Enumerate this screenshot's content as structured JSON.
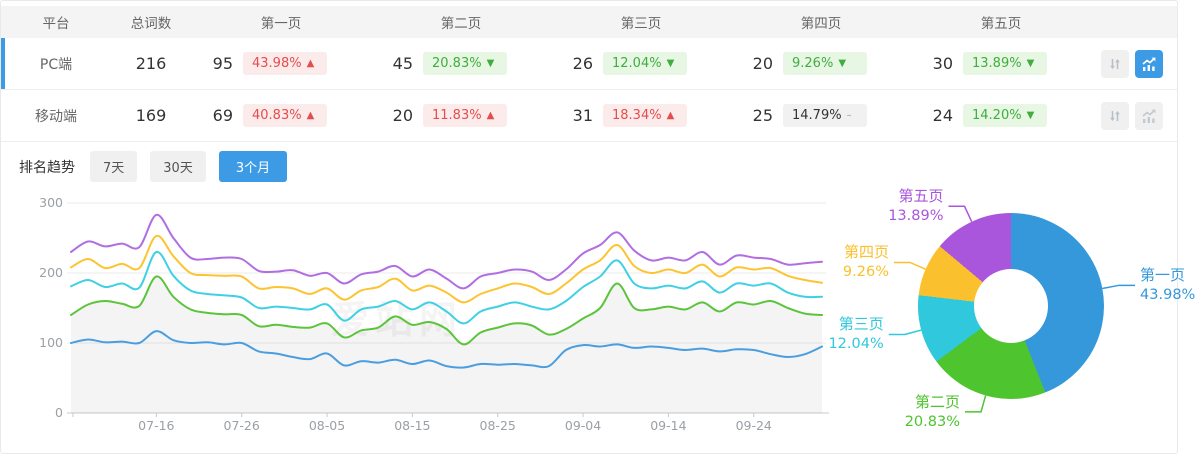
{
  "colors": {
    "accent": "#3d9be5",
    "badge_red_text": "#e64c4c",
    "badge_red_bg": "#fbeceb",
    "badge_green_text": "#3fae3f",
    "badge_green_bg": "#e8f6e4",
    "badge_gray_bg": "#f1f1f1",
    "header_bg": "#f4f4f4",
    "axis_text": "#9aa0a6"
  },
  "table": {
    "headers": [
      "平台",
      "总词数",
      "第一页",
      "第二页",
      "第三页",
      "第四页",
      "第五页"
    ],
    "rows": [
      {
        "platform": "PC端",
        "total": "216",
        "pages": [
          {
            "count": "95",
            "pct": "43.98%",
            "arrow": "▲"
          },
          {
            "count": "45",
            "pct": "20.83%",
            "arrow": "▼"
          },
          {
            "count": "26",
            "pct": "12.04%",
            "arrow": "▼"
          },
          {
            "count": "20",
            "pct": "9.26%",
            "arrow": "▼"
          },
          {
            "count": "30",
            "pct": "13.89%",
            "arrow": "▼"
          }
        ]
      },
      {
        "platform": "移动端",
        "total": "169",
        "pages": [
          {
            "count": "69",
            "pct": "40.83%",
            "arrow": "▲"
          },
          {
            "count": "20",
            "pct": "11.83%",
            "arrow": "▲"
          },
          {
            "count": "31",
            "pct": "18.34%",
            "arrow": "▲"
          },
          {
            "count": "25",
            "pct": "14.79%",
            "arrow": "–"
          },
          {
            "count": "24",
            "pct": "14.20%",
            "arrow": "▼"
          }
        ]
      }
    ]
  },
  "trend": {
    "title": "排名趋势",
    "tabs": [
      {
        "label": "7天",
        "active": false
      },
      {
        "label": "30天",
        "active": false
      },
      {
        "label": "3个月",
        "active": true
      }
    ]
  },
  "watermark": "爱站网",
  "chart_data": [
    {
      "type": "line",
      "title": "排名趋势 3个月",
      "ylim": [
        0,
        300
      ],
      "yticks": [
        0,
        100,
        200,
        300
      ],
      "grid": true,
      "x_is_days": true,
      "day_span": 88,
      "xticks": [
        {
          "label": "07-16",
          "day": 10
        },
        {
          "label": "07-26",
          "day": 20
        },
        {
          "label": "08-05",
          "day": 30
        },
        {
          "label": "08-15",
          "day": 40
        },
        {
          "label": "08-25",
          "day": 50
        },
        {
          "label": "09-04",
          "day": 60
        },
        {
          "label": "09-14",
          "day": 70
        },
        {
          "label": "09-24",
          "day": 80
        }
      ],
      "sample_days_step": 2,
      "series": [
        {
          "name": "第一页",
          "color": "#4a9ee0",
          "area": false,
          "values": [
            100,
            105,
            101,
            102,
            100,
            117,
            104,
            100,
            101,
            98,
            100,
            88,
            85,
            80,
            77,
            85,
            68,
            74,
            72,
            76,
            70,
            75,
            67,
            65,
            70,
            69,
            70,
            68,
            67,
            90,
            97,
            95,
            98,
            93,
            95,
            93,
            90,
            92,
            88,
            91,
            90,
            84,
            80,
            84,
            95
          ]
        },
        {
          "name": "第二页",
          "color": "#5bc43b",
          "area": true,
          "values": [
            140,
            155,
            160,
            156,
            153,
            195,
            166,
            148,
            143,
            141,
            140,
            124,
            126,
            123,
            122,
            128,
            108,
            118,
            122,
            138,
            126,
            130,
            120,
            98,
            115,
            122,
            128,
            125,
            112,
            120,
            135,
            150,
            185,
            150,
            148,
            152,
            148,
            158,
            145,
            158,
            155,
            160,
            150,
            142,
            140
          ]
        },
        {
          "name": "第三页",
          "color": "#3fd0e4",
          "area": false,
          "values": [
            181,
            190,
            180,
            185,
            179,
            230,
            196,
            175,
            170,
            168,
            165,
            150,
            152,
            150,
            148,
            155,
            132,
            148,
            152,
            160,
            148,
            158,
            145,
            128,
            145,
            152,
            158,
            152,
            148,
            160,
            180,
            195,
            218,
            185,
            178,
            182,
            178,
            188,
            172,
            185,
            182,
            185,
            172,
            166,
            166
          ]
        },
        {
          "name": "第四页",
          "color": "#fdc431",
          "area": false,
          "values": [
            208,
            220,
            207,
            213,
            207,
            253,
            224,
            200,
            197,
            196,
            195,
            178,
            180,
            178,
            170,
            178,
            162,
            175,
            180,
            192,
            175,
            182,
            172,
            158,
            170,
            178,
            185,
            180,
            170,
            185,
            205,
            218,
            240,
            210,
            200,
            205,
            200,
            212,
            195,
            208,
            205,
            207,
            196,
            190,
            186
          ]
        },
        {
          "name": "第五页",
          "color": "#b06ee2",
          "area": false,
          "values": [
            230,
            245,
            238,
            242,
            237,
            283,
            250,
            222,
            220,
            222,
            220,
            203,
            202,
            204,
            196,
            200,
            185,
            198,
            202,
            210,
            195,
            205,
            192,
            178,
            195,
            200,
            205,
            202,
            190,
            205,
            228,
            240,
            258,
            232,
            218,
            222,
            218,
            230,
            212,
            225,
            222,
            220,
            212,
            214,
            216
          ]
        }
      ]
    },
    {
      "type": "pie",
      "donut": true,
      "labels": [
        "第一页",
        "第二页",
        "第三页",
        "第四页",
        "第五页"
      ],
      "values": [
        43.98,
        20.83,
        12.04,
        9.26,
        13.89
      ],
      "display_pcts": [
        "43.98%",
        "20.83%",
        "12.04%",
        "9.26%",
        "13.89%"
      ],
      "colors": [
        "#3498db",
        "#4ec42f",
        "#2fc8dc",
        "#fbc02d",
        "#a955dc"
      ]
    }
  ]
}
